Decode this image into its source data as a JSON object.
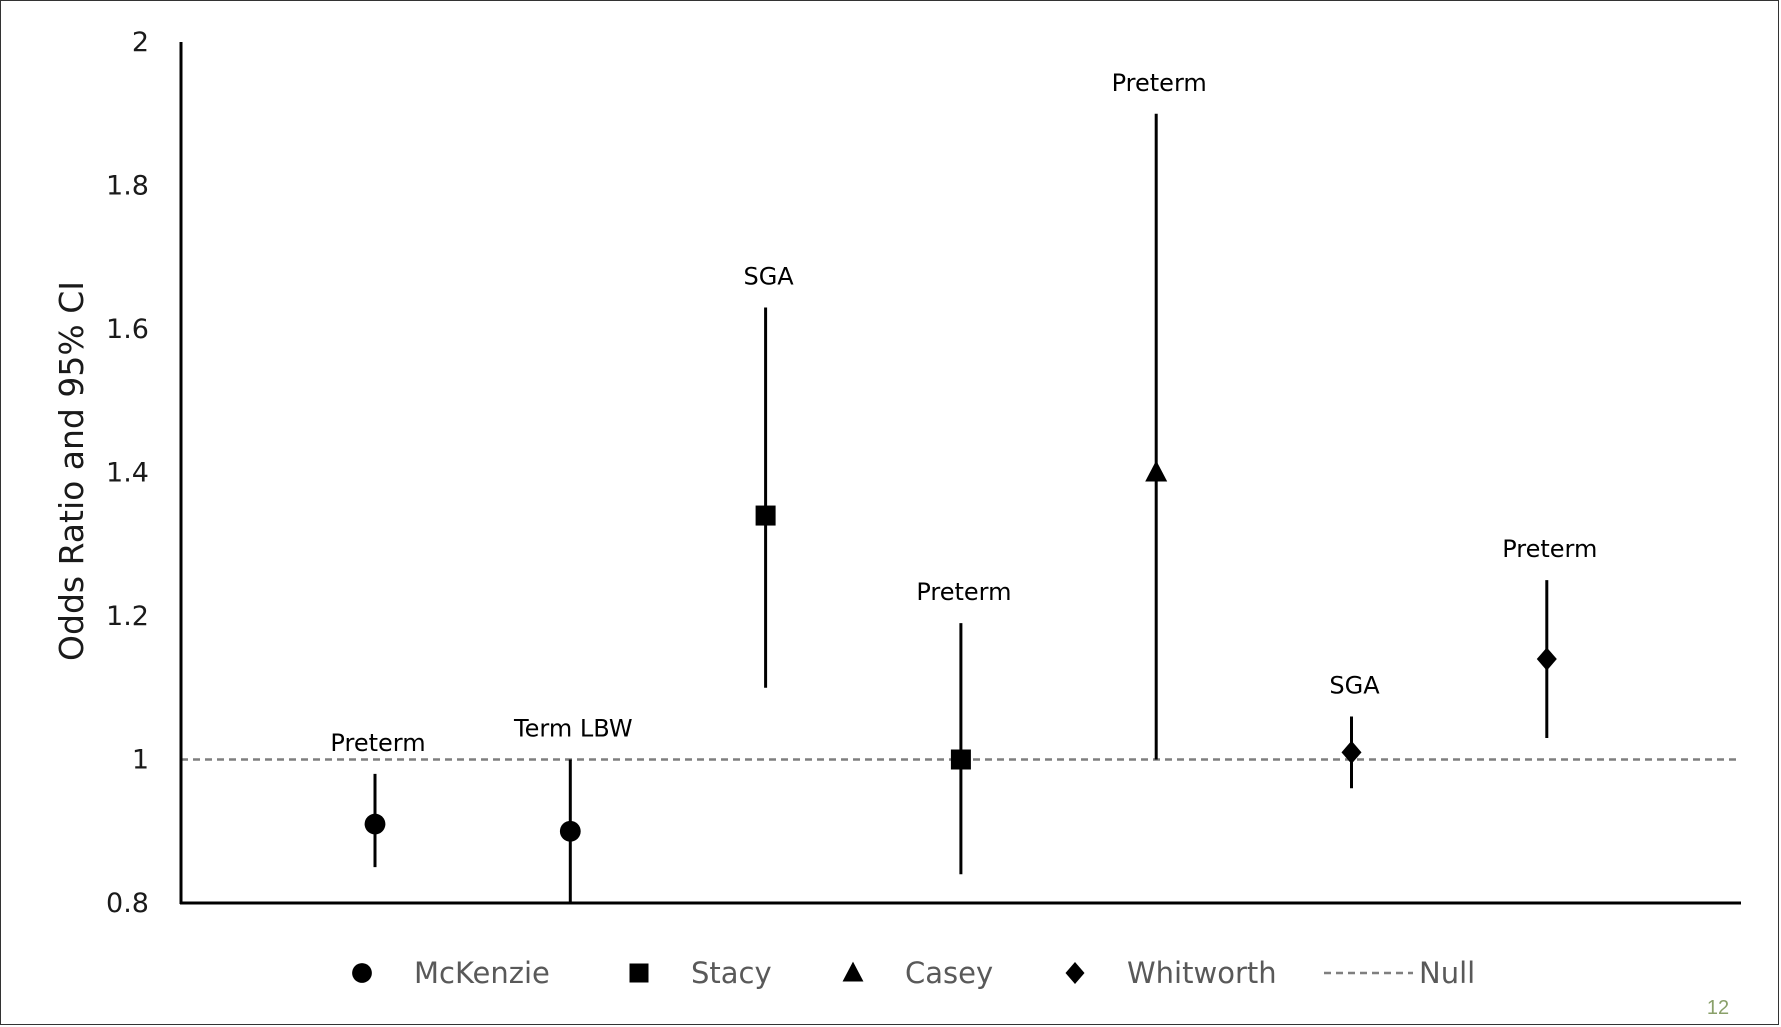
{
  "page": {
    "number": "12"
  },
  "chart_data": {
    "type": "scatter",
    "ylabel": "Odds Ratio and 95% CI",
    "xlabel": "",
    "ylim": [
      0.8,
      2.0
    ],
    "yticks": [
      0.8,
      1.0,
      1.2,
      1.4,
      1.6,
      1.8,
      2.0
    ],
    "ytick_labels": [
      "0.8",
      "1",
      "1.2",
      "1.4",
      "1.6",
      "1.8",
      "2"
    ],
    "grid": false,
    "null_line": {
      "y": 1.0,
      "name": "Null",
      "style": "dashed",
      "color": "#7f7f7f"
    },
    "legend_placement": "bottom",
    "series": [
      {
        "name": "McKenzie",
        "marker": "circle",
        "points": [
          {
            "x": 1,
            "label": "Preterm",
            "or": 0.91,
            "lower": 0.85,
            "upper": 0.98
          },
          {
            "x": 2,
            "label": "Term LBW",
            "or": 0.9,
            "lower": 0.8,
            "upper": 1.0
          }
        ]
      },
      {
        "name": "Stacy",
        "marker": "square",
        "points": [
          {
            "x": 3,
            "label": "SGA",
            "or": 1.34,
            "lower": 1.1,
            "upper": 1.63
          },
          {
            "x": 4,
            "label": "Preterm",
            "or": 1.0,
            "lower": 0.84,
            "upper": 1.19
          }
        ]
      },
      {
        "name": "Casey",
        "marker": "triangle",
        "points": [
          {
            "x": 5,
            "label": "Preterm",
            "or": 1.4,
            "lower": 1.0,
            "upper": 1.9
          }
        ]
      },
      {
        "name": "Whitworth",
        "marker": "diamond",
        "points": [
          {
            "x": 6,
            "label": "SGA",
            "or": 1.01,
            "lower": 0.96,
            "upper": 1.06
          },
          {
            "x": 7,
            "label": "Preterm",
            "or": 1.14,
            "lower": 1.03,
            "upper": 1.25
          }
        ]
      }
    ],
    "colors": {
      "marker": "#000000",
      "axis": "#000000",
      "legend_text": "#595959",
      "page_number": "#8aa06a"
    }
  }
}
